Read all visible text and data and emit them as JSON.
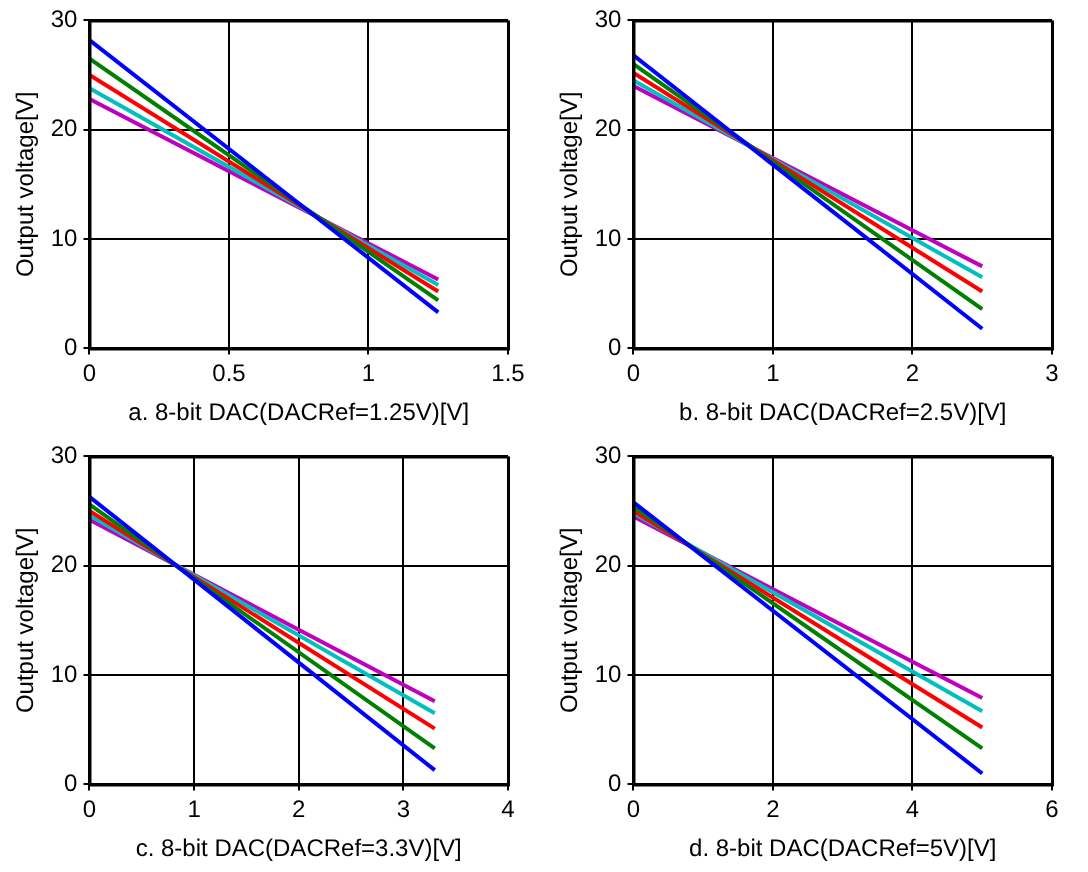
{
  "chart_data": [
    {
      "type": "line",
      "xlabel": "a. 8-bit DAC(DACRef=1.25V)[V]",
      "ylabel": "Output voltage[V]",
      "x": [
        0,
        1.25
      ],
      "xlim": [
        0,
        1.5
      ],
      "xticks": [
        0,
        0.5,
        1,
        1.5
      ],
      "ylim": [
        0,
        30
      ],
      "yticks": [
        0,
        10,
        20,
        30
      ],
      "grid": true,
      "marker": "none",
      "line_style": "solid",
      "series": [
        {
          "color": "#0000ff",
          "values": [
            28.2,
            3.3
          ]
        },
        {
          "color": "#008000",
          "values": [
            26.5,
            4.4
          ]
        },
        {
          "color": "#ff0000",
          "values": [
            25,
            5.2
          ]
        },
        {
          "color": "#00bfbf",
          "values": [
            23.8,
            5.8
          ]
        },
        {
          "color": "#bf00bf",
          "values": [
            22.8,
            6.3
          ]
        }
      ]
    },
    {
      "type": "line",
      "xlabel": "b. 8-bit DAC(DACRef=2.5V)[V]",
      "ylabel": "Output voltage[V]",
      "x": [
        0,
        2.5
      ],
      "xlim": [
        0,
        3
      ],
      "xticks": [
        0,
        1,
        2,
        3
      ],
      "ylim": [
        0,
        30
      ],
      "yticks": [
        0,
        10,
        20,
        30
      ],
      "grid": true,
      "marker": "none",
      "line_style": "solid",
      "series": [
        {
          "color": "#0000ff",
          "values": [
            26.8,
            1.8
          ]
        },
        {
          "color": "#008000",
          "values": [
            26,
            3.6
          ]
        },
        {
          "color": "#ff0000",
          "values": [
            25.2,
            5.2
          ]
        },
        {
          "color": "#00bfbf",
          "values": [
            24.5,
            6.5
          ]
        },
        {
          "color": "#bf00bf",
          "values": [
            24,
            7.5
          ]
        }
      ]
    },
    {
      "type": "line",
      "xlabel": "c. 8-bit DAC(DACRef=3.3V)[V]",
      "ylabel": "Output voltage[V]",
      "x": [
        0,
        3.3
      ],
      "xlim": [
        0,
        4
      ],
      "xticks": [
        0,
        1,
        2,
        3,
        4
      ],
      "ylim": [
        0,
        30
      ],
      "yticks": [
        0,
        10,
        20,
        30
      ],
      "grid": true,
      "marker": "none",
      "line_style": "solid",
      "series": [
        {
          "color": "#0000ff",
          "values": [
            26.3,
            1.3
          ]
        },
        {
          "color": "#008000",
          "values": [
            25.6,
            3.3
          ]
        },
        {
          "color": "#ff0000",
          "values": [
            25,
            5.1
          ]
        },
        {
          "color": "#00bfbf",
          "values": [
            24.6,
            6.5
          ]
        },
        {
          "color": "#bf00bf",
          "values": [
            24.2,
            7.6
          ]
        }
      ]
    },
    {
      "type": "line",
      "xlabel": "d. 8-bit DAC(DACRef=5V)[V]",
      "ylabel": "Output voltage[V]",
      "x": [
        0,
        5
      ],
      "xlim": [
        0,
        6
      ],
      "xticks": [
        0,
        2,
        4,
        6
      ],
      "ylim": [
        0,
        30
      ],
      "yticks": [
        0,
        10,
        20,
        30
      ],
      "grid": true,
      "marker": "none",
      "line_style": "solid",
      "series": [
        {
          "color": "#0000ff",
          "values": [
            25.8,
            1
          ]
        },
        {
          "color": "#008000",
          "values": [
            25.4,
            3.3
          ]
        },
        {
          "color": "#ff0000",
          "values": [
            25,
            5.2
          ]
        },
        {
          "color": "#00bfbf",
          "values": [
            24.8,
            6.7
          ]
        },
        {
          "color": "#bf00bf",
          "values": [
            24.5,
            7.9
          ]
        }
      ]
    }
  ]
}
